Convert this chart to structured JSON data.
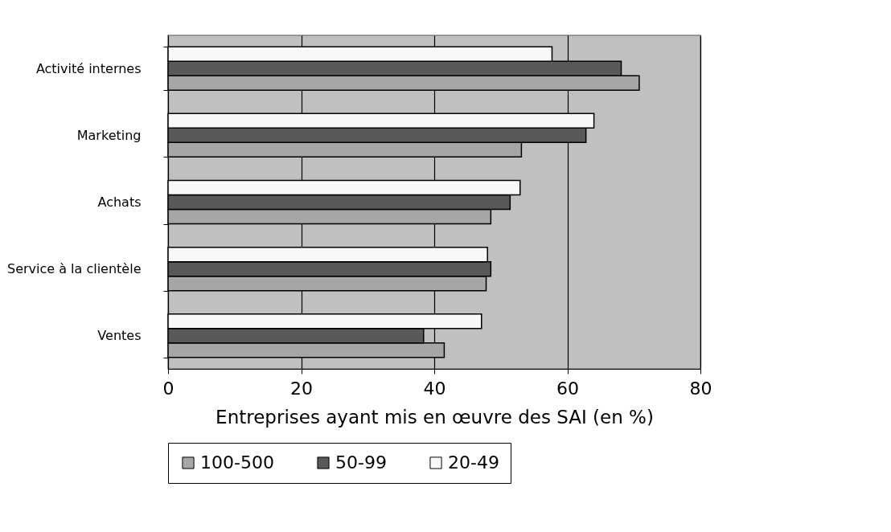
{
  "chart_data": {
    "type": "bar",
    "orientation": "horizontal",
    "xlabel": "Entreprises ayant mis en œuvre des SAI (en %)",
    "categories": [
      "Activité  internes",
      "Marketing",
      "Achats",
      "Service à la clientèle",
      "Ventes"
    ],
    "series": [
      {
        "name": "100-500",
        "color": "#a6a6a6",
        "values": [
          70.8,
          53.1,
          48.5,
          47.8,
          41.5
        ]
      },
      {
        "name": "50-99",
        "color": "#595959",
        "values": [
          68.1,
          62.8,
          51.4,
          48.5,
          38.4
        ]
      },
      {
        "name": "20-49",
        "color": "#f8f8f8",
        "values": [
          57.7,
          64.0,
          52.9,
          48.0,
          47.1
        ]
      }
    ],
    "xlim": [
      0,
      80
    ],
    "xticks": [
      0,
      20,
      40,
      60,
      80
    ],
    "grid": "x",
    "legend": "bottom"
  }
}
